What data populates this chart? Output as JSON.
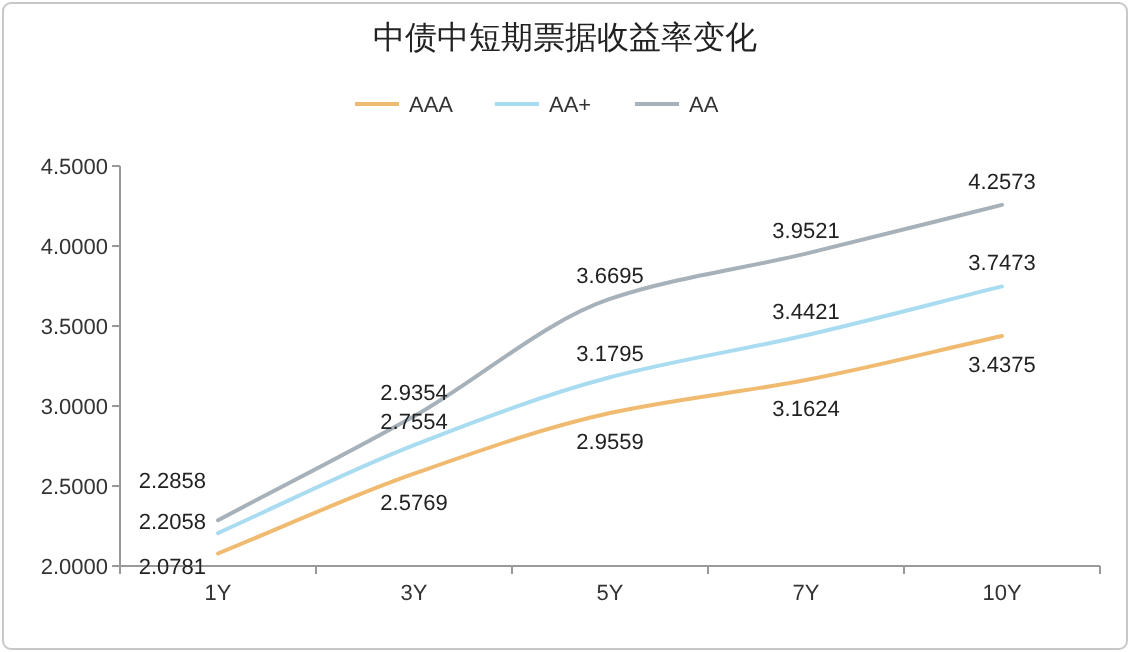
{
  "chart_data": {
    "type": "line",
    "title": "中债中短期票据收益率变化",
    "categories": [
      "1Y",
      "3Y",
      "5Y",
      "7Y",
      "10Y"
    ],
    "series": [
      {
        "name": "AAA",
        "color": "#f0bb70",
        "values": [
          2.0781,
          2.5769,
          2.9559,
          3.1624,
          3.4375
        ]
      },
      {
        "name": "AA+",
        "color": "#a9dcf0",
        "values": [
          2.2058,
          2.7554,
          3.1795,
          3.4421,
          3.7473
        ]
      },
      {
        "name": "AA",
        "color": "#a7b1b9",
        "values": [
          2.2858,
          2.9354,
          3.6695,
          3.9521,
          4.2573
        ]
      }
    ],
    "ylim": [
      2.0,
      4.5
    ],
    "yticks": [
      {
        "value": 2.0,
        "label": "2.0000"
      },
      {
        "value": 2.5,
        "label": "2.5000"
      },
      {
        "value": 3.0,
        "label": "3.0000"
      },
      {
        "value": 3.5,
        "label": "3.5000"
      },
      {
        "value": 4.0,
        "label": "4.0000"
      },
      {
        "value": 4.5,
        "label": "4.5000"
      }
    ],
    "legend": "top",
    "data_labels": true,
    "marker": "none",
    "line_style": "solid",
    "grid": false
  }
}
